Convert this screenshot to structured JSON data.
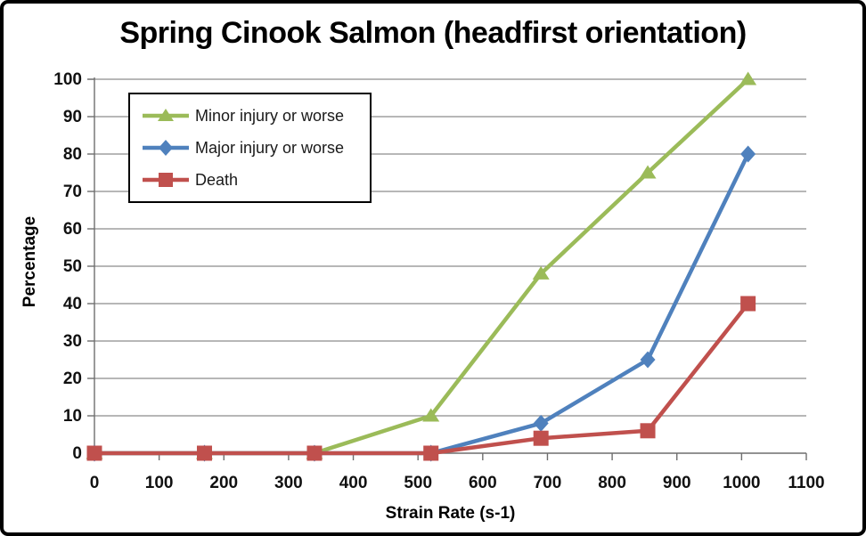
{
  "window": {
    "background": "#ffffff",
    "border_color": "#000000"
  },
  "chart_data": {
    "type": "line",
    "title": "Spring Cinook Salmon (headfirst orientation)",
    "xlabel": "Strain Rate (s-1)",
    "ylabel": "Percentage",
    "xlim": [
      0,
      1100
    ],
    "ylim": [
      0,
      100
    ],
    "x_ticks": [
      0,
      100,
      200,
      300,
      400,
      500,
      600,
      700,
      800,
      900,
      1000,
      1100
    ],
    "y_ticks": [
      0,
      10,
      20,
      30,
      40,
      50,
      60,
      70,
      80,
      90,
      100
    ],
    "grid": "horizontal",
    "legend_position": "top-left",
    "x": [
      0,
      170,
      340,
      520,
      690,
      855,
      1010
    ],
    "series": [
      {
        "name": "Minor injury or worse",
        "marker": "triangle",
        "color": "#9BBB59",
        "values": [
          0,
          0,
          0,
          10,
          48,
          75,
          100
        ]
      },
      {
        "name": "Major injury or worse",
        "marker": "diamond",
        "color": "#4F81BD",
        "values": [
          0,
          0,
          0,
          0,
          8,
          25,
          80
        ]
      },
      {
        "name": "Death",
        "marker": "square",
        "color": "#C0504D",
        "values": [
          0,
          0,
          0,
          0,
          4,
          6,
          40
        ]
      }
    ],
    "style": {
      "gridline_color": "#8C8C8C",
      "axis_color": "#6E6E6E",
      "tick_text_color": "#111111",
      "line_width": 4.5
    }
  }
}
